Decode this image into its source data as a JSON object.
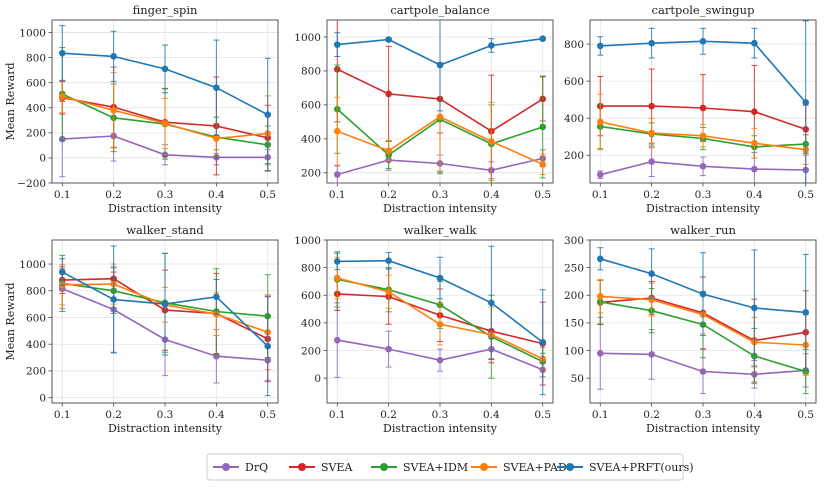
{
  "figure": {
    "xlabel": "Distraction intensity",
    "ylabel": "Mean Reward"
  },
  "legend": [
    {
      "name": "DrQ",
      "color": "#9467bd"
    },
    {
      "name": "SVEA",
      "color": "#d62728"
    },
    {
      "name": "SVEA+IDM",
      "color": "#2ca02c"
    },
    {
      "name": "SVEA+PAD",
      "color": "#ff7f0e"
    },
    {
      "name": "SVEA+PRFT(ours)",
      "color": "#1f77b4"
    }
  ],
  "chart_data": [
    {
      "type": "line",
      "title": "finger_spin",
      "xlabel": "Distraction intensity",
      "ylabel": "Mean Reward",
      "x": [
        0.1,
        0.2,
        0.3,
        0.4,
        0.5
      ],
      "ylim": [
        -200,
        1100
      ],
      "yticks": [
        -200,
        0,
        200,
        400,
        600,
        800,
        1000
      ],
      "series": [
        {
          "name": "DrQ",
          "values": [
            150,
            175,
            25,
            5,
            5
          ],
          "err": [
            300,
            200,
            80,
            60,
            60
          ]
        },
        {
          "name": "SVEA",
          "values": [
            480,
            405,
            285,
            255,
            160
          ],
          "err": [
            130,
            320,
            270,
            390,
            260
          ]
        },
        {
          "name": "SVEA+IDM",
          "values": [
            510,
            320,
            270,
            165,
            105
          ],
          "err": [
            370,
            270,
            280,
            160,
            150
          ]
        },
        {
          "name": "SVEA+PAD",
          "values": [
            490,
            380,
            275,
            155,
            195
          ],
          "err": [
            130,
            300,
            200,
            120,
            300
          ]
        },
        {
          "name": "SVEA+PRFT(ours)",
          "values": [
            835,
            810,
            710,
            560,
            345
          ],
          "err": [
            220,
            200,
            190,
            380,
            450
          ]
        }
      ]
    },
    {
      "type": "line",
      "title": "cartpole_balance",
      "xlabel": "Distraction intensity",
      "ylabel": "",
      "x": [
        0.1,
        0.2,
        0.3,
        0.4,
        0.5
      ],
      "ylim": [
        140,
        1100
      ],
      "yticks": [
        200,
        400,
        600,
        800,
        1000
      ],
      "series": [
        {
          "name": "DrQ",
          "values": [
            190,
            275,
            255,
            215,
            285
          ],
          "err": [
            50,
            60,
            50,
            50,
            50
          ]
        },
        {
          "name": "SVEA",
          "values": [
            810,
            665,
            635,
            445,
            635
          ],
          "err": [
            310,
            280,
            200,
            330,
            130
          ]
        },
        {
          "name": "SVEA+IDM",
          "values": [
            575,
            305,
            515,
            370,
            470
          ],
          "err": [
            260,
            80,
            320,
            230,
            300
          ]
        },
        {
          "name": "SVEA+PAD",
          "values": [
            445,
            330,
            530,
            385,
            250
          ],
          "err": [
            200,
            60,
            320,
            230,
            60
          ]
        },
        {
          "name": "SVEA+PRFT(ours)",
          "values": [
            955,
            985,
            835,
            950,
            990
          ],
          "err": [
            70,
            10,
            270,
            40,
            10
          ]
        }
      ]
    },
    {
      "type": "line",
      "title": "cartpole_swingup",
      "xlabel": "Distraction intensity",
      "ylabel": "",
      "x": [
        0.1,
        0.2,
        0.3,
        0.4,
        0.5
      ],
      "ylim": [
        50,
        930
      ],
      "yticks": [
        200,
        400,
        600,
        800
      ],
      "series": [
        {
          "name": "DrQ",
          "values": [
            95,
            165,
            140,
            125,
            120
          ],
          "err": [
            20,
            80,
            50,
            90,
            80
          ]
        },
        {
          "name": "SVEA",
          "values": [
            465,
            465,
            455,
            435,
            340
          ],
          "err": [
            160,
            200,
            180,
            250,
            130
          ]
        },
        {
          "name": "SVEA+IDM",
          "values": [
            355,
            315,
            290,
            245,
            260
          ],
          "err": [
            120,
            60,
            60,
            60,
            50
          ]
        },
        {
          "name": "SVEA+PAD",
          "values": [
            380,
            320,
            305,
            265,
            230
          ],
          "err": [
            150,
            80,
            60,
            80,
            80
          ]
        },
        {
          "name": "SVEA+PRFT(ours)",
          "values": [
            790,
            805,
            815,
            805,
            485
          ],
          "err": [
            50,
            80,
            70,
            80,
            440
          ]
        }
      ]
    },
    {
      "type": "line",
      "title": "walker_stand",
      "xlabel": "Distraction intensity",
      "ylabel": "Mean Reward",
      "x": [
        0.1,
        0.2,
        0.3,
        0.4,
        0.5
      ],
      "ylim": [
        -40,
        1180
      ],
      "yticks": [
        0,
        200,
        400,
        600,
        800,
        1000
      ],
      "series": [
        {
          "name": "DrQ",
          "values": [
            815,
            660,
            435,
            310,
            280
          ],
          "err": [
            150,
            320,
            270,
            200,
            150
          ]
        },
        {
          "name": "SVEA",
          "values": [
            880,
            890,
            655,
            630,
            440
          ],
          "err": [
            100,
            50,
            300,
            300,
            320
          ]
        },
        {
          "name": "SVEA+IDM",
          "values": [
            855,
            800,
            710,
            645,
            610
          ],
          "err": [
            210,
            170,
            370,
            320,
            310
          ]
        },
        {
          "name": "SVEA+PAD",
          "values": [
            845,
            850,
            695,
            625,
            490
          ],
          "err": [
            150,
            150,
            130,
            160,
            280
          ]
        },
        {
          "name": "SVEA+PRFT(ours)",
          "values": [
            940,
            735,
            700,
            755,
            385
          ],
          "err": [
            100,
            400,
            380,
            130,
            370
          ]
        }
      ]
    },
    {
      "type": "line",
      "title": "walker_walk",
      "xlabel": "Distraction intensity",
      "ylabel": "",
      "x": [
        0.1,
        0.2,
        0.3,
        0.4,
        0.5
      ],
      "ylim": [
        -180,
        1000
      ],
      "yticks": [
        0,
        200,
        400,
        600,
        800,
        1000
      ],
      "series": [
        {
          "name": "DrQ",
          "values": [
            275,
            210,
            130,
            210,
            60
          ],
          "err": [
            270,
            130,
            80,
            100,
            50
          ]
        },
        {
          "name": "SVEA",
          "values": [
            610,
            590,
            455,
            340,
            250
          ],
          "err": [
            120,
            200,
            190,
            200,
            300
          ]
        },
        {
          "name": "SVEA+IDM",
          "values": [
            715,
            640,
            530,
            300,
            120
          ],
          "err": [
            200,
            160,
            170,
            300,
            60
          ]
        },
        {
          "name": "SVEA+PAD",
          "values": [
            725,
            625,
            390,
            315,
            140
          ],
          "err": [
            150,
            120,
            150,
            200,
            80
          ]
        },
        {
          "name": "SVEA+PRFT(ours)",
          "values": [
            845,
            850,
            725,
            545,
            260
          ],
          "err": [
            60,
            60,
            150,
            410,
            380
          ]
        }
      ]
    },
    {
      "type": "line",
      "title": "walker_run",
      "xlabel": "Distraction intensity",
      "ylabel": "",
      "x": [
        0.1,
        0.2,
        0.3,
        0.4,
        0.5
      ],
      "ylim": [
        5,
        300
      ],
      "yticks": [
        50,
        100,
        150,
        200,
        250,
        300
      ],
      "series": [
        {
          "name": "DrQ",
          "values": [
            95,
            93,
            62,
            57,
            64
          ],
          "err": [
            65,
            45,
            40,
            25,
            30
          ]
        },
        {
          "name": "SVEA",
          "values": [
            187,
            195,
            168,
            118,
            133
          ],
          "err": [
            40,
            30,
            65,
            75,
            75
          ]
        },
        {
          "name": "SVEA+IDM",
          "values": [
            188,
            172,
            147,
            90,
            62
          ],
          "err": [
            40,
            40,
            60,
            50,
            40
          ]
        },
        {
          "name": "SVEA+PAD",
          "values": [
            198,
            192,
            165,
            115,
            110
          ],
          "err": [
            30,
            30,
            35,
            45,
            55
          ]
        },
        {
          "name": "SVEA+PRFT(ours)",
          "values": [
            266,
            239,
            202,
            177,
            169
          ],
          "err": [
            20,
            45,
            75,
            105,
            105
          ]
        }
      ]
    }
  ]
}
